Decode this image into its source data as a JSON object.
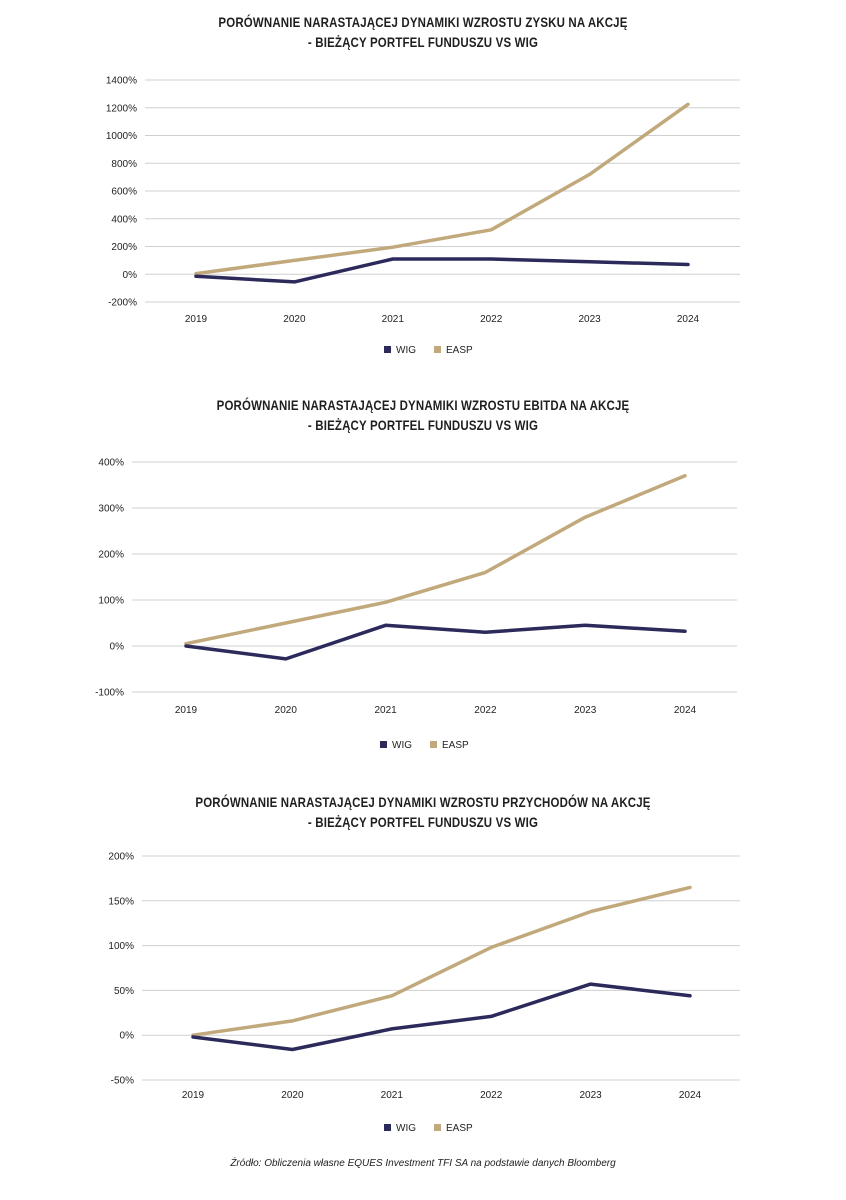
{
  "colors": {
    "WIG": "#2b2a5b",
    "EASP": "#c1a97c",
    "grid": "#d0d0d0"
  },
  "source": "Źródło: Obliczenia własne EQUES Investment TFI SA na podstawie danych Bloomberg",
  "chart_data": [
    {
      "type": "line",
      "title": [
        "PORÓWNANIE NARASTAJĄCEJ DYNAMIKI WZROSTU ZYSKU NA AKCJĘ",
        "- BIEŻĄCY PORTFEL FUNDUSZU VS WIG"
      ],
      "categories": [
        "2019",
        "2020",
        "2021",
        "2022",
        "2023",
        "2024"
      ],
      "ylim": [
        -200,
        1400
      ],
      "yticks": [
        -200,
        0,
        200,
        400,
        600,
        800,
        1000,
        1200,
        1400
      ],
      "ytick_labels": [
        "-200%",
        "0%",
        "200%",
        "400%",
        "600%",
        "800%",
        "1000%",
        "1200%",
        "1400%"
      ],
      "grid": true,
      "legend": "bottom-center",
      "series": [
        {
          "name": "WIG",
          "values": [
            -15,
            -55,
            110,
            110,
            90,
            70
          ]
        },
        {
          "name": "EASP",
          "values": [
            5,
            100,
            195,
            320,
            720,
            1225
          ]
        }
      ]
    },
    {
      "type": "line",
      "title": [
        "PORÓWNANIE NARASTAJĄCEJ DYNAMIKI WZROSTU EBITDA NA AKCJĘ",
        "- BIEŻĄCY PORTFEL FUNDUSZU VS WIG"
      ],
      "categories": [
        "2019",
        "2020",
        "2021",
        "2022",
        "2023",
        "2024"
      ],
      "ylim": [
        -100,
        400
      ],
      "yticks": [
        -100,
        0,
        100,
        200,
        300,
        400
      ],
      "ytick_labels": [
        "-100%",
        "0%",
        "100%",
        "200%",
        "300%",
        "400%"
      ],
      "grid": true,
      "legend": "bottom-center",
      "series": [
        {
          "name": "WIG",
          "values": [
            0,
            -28,
            45,
            30,
            45,
            32
          ]
        },
        {
          "name": "EASP",
          "values": [
            5,
            50,
            95,
            160,
            280,
            370
          ]
        }
      ]
    },
    {
      "type": "line",
      "title": [
        "PORÓWNANIE NARASTAJĄCEJ DYNAMIKI WZROSTU PRZYCHODÓW NA AKCJĘ",
        "- BIEŻĄCY PORTFEL FUNDUSZU VS WIG"
      ],
      "categories": [
        "2019",
        "2020",
        "2021",
        "2022",
        "2023",
        "2024"
      ],
      "ylim": [
        -50,
        200
      ],
      "yticks": [
        -50,
        0,
        50,
        100,
        150,
        200
      ],
      "ytick_labels": [
        "-50%",
        "0%",
        "50%",
        "100%",
        "150%",
        "200%"
      ],
      "grid": true,
      "legend": "bottom-center",
      "series": [
        {
          "name": "WIG",
          "values": [
            -2,
            -16,
            7,
            21,
            57,
            44
          ]
        },
        {
          "name": "EASP",
          "values": [
            0,
            16,
            44,
            98,
            138,
            165
          ]
        }
      ]
    }
  ]
}
